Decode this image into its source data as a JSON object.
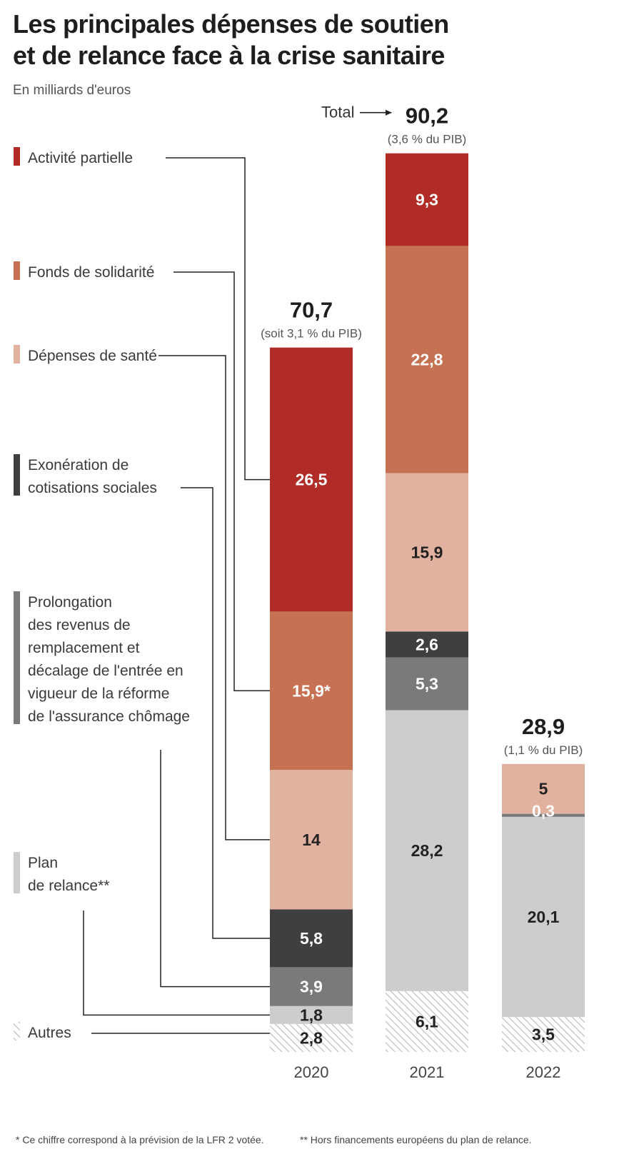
{
  "title_line1": "Les principales dépenses de soutien",
  "title_line2": "et de relance face à la crise sanitaire",
  "subtitle": "En milliards d'euros",
  "total_prefix": "Total",
  "colors": {
    "activite_partielle": "#b12b27",
    "fonds_solidarite": "#c77153",
    "sante": "#e2b2a0",
    "exoneration": "#3f3f3f",
    "prolongation": "#7a7a7a",
    "plan_relance": "#cdcdcd",
    "autres_stripe": "#bdbdbd"
  },
  "chart_data": {
    "type": "bar",
    "stacked": true,
    "categories": [
      "2020",
      "2021",
      "2022"
    ],
    "series": [
      {
        "name": "Activité partielle",
        "key": "activite_partielle",
        "values": [
          26.5,
          9.3,
          null
        ],
        "labels": [
          "26,5",
          "9,3",
          ""
        ]
      },
      {
        "name": "Fonds de solidarité",
        "key": "fonds_solidarite",
        "values": [
          15.9,
          22.8,
          null
        ],
        "labels": [
          "15,9*",
          "22,8",
          ""
        ]
      },
      {
        "name": "Dépenses de santé",
        "key": "sante",
        "values": [
          14,
          15.9,
          5
        ],
        "labels": [
          "14",
          "15,9",
          "5"
        ]
      },
      {
        "name": "Exonération de cotisations sociales",
        "key": "exoneration",
        "values": [
          5.8,
          2.6,
          null
        ],
        "labels": [
          "5,8",
          "2,6",
          ""
        ]
      },
      {
        "name": "Prolongation des revenus de remplacement et décalage de l'entrée en vigueur de la réforme de l'assurance chômage",
        "key": "prolongation",
        "values": [
          3.9,
          5.3,
          0.3
        ],
        "labels": [
          "3,9",
          "5,3",
          "0,3"
        ]
      },
      {
        "name": "Plan de relance**",
        "key": "plan_relance",
        "values": [
          1.8,
          28.2,
          20.1
        ],
        "labels": [
          "1,8",
          "28,2",
          "20,1"
        ]
      },
      {
        "name": "Autres",
        "key": "autres",
        "values": [
          2.8,
          6.1,
          3.5
        ],
        "labels": [
          "2,8",
          "6,1",
          "3,5"
        ]
      }
    ],
    "totals": [
      {
        "value": "70,7",
        "note": "(soit 3,1 % du PIB)"
      },
      {
        "value": "90,2",
        "note": "(3,6 % du PIB)"
      },
      {
        "value": "28,9",
        "note": "(1,1 % du PIB)"
      }
    ],
    "legend": [
      {
        "key": "activite_partielle",
        "lines": [
          "Activité partielle"
        ]
      },
      {
        "key": "fonds_solidarite",
        "lines": [
          "Fonds de solidarité"
        ]
      },
      {
        "key": "sante",
        "lines": [
          "Dépenses de santé"
        ]
      },
      {
        "key": "exoneration",
        "lines": [
          "Exonération de",
          "cotisations sociales"
        ]
      },
      {
        "key": "prolongation",
        "lines": [
          "Prolongation",
          "des revenus de",
          "remplacement et",
          "décalage de l'entrée en",
          "vigueur de la réforme",
          "de l'assurance chômage"
        ]
      },
      {
        "key": "plan_relance",
        "lines": [
          "Plan",
          "de relance**"
        ]
      },
      {
        "key": "autres",
        "lines": [
          "Autres"
        ]
      }
    ],
    "legend_placement": "left"
  },
  "footnotes": {
    "left": "* Ce chiffre correspond à la prévision de la LFR 2 votée.",
    "right": "** Hors financements européens du plan de relance."
  }
}
